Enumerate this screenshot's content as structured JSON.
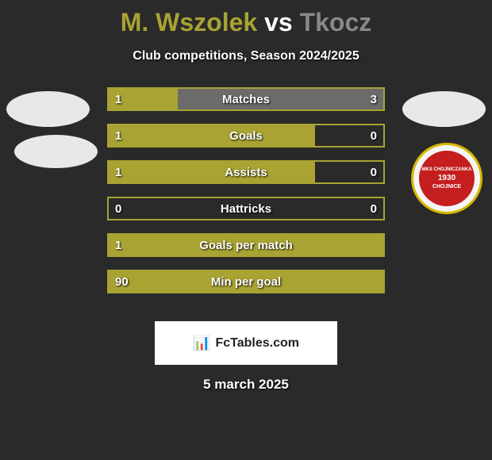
{
  "title": {
    "player1": "M. Wszolek",
    "vs": "vs",
    "player2": "Tkocz",
    "player1_color": "#a8a332",
    "player2_color": "#888888",
    "vs_color": "#ffffff"
  },
  "subtitle": "Club competitions, Season 2024/2025",
  "club_badge": {
    "text_top": "MKS CHOJNICZANKA",
    "year": "1930",
    "text_bottom": "CHOJNICE"
  },
  "colors": {
    "background": "#2a2a2a",
    "player1_bar": "#a8a332",
    "player2_bar": "#6b6b6b",
    "border": "#a8a332",
    "text": "#ffffff"
  },
  "stats": [
    {
      "label": "Matches",
      "left_value": "1",
      "right_value": "3",
      "left_pct": 25,
      "right_pct": 75,
      "left_color": "#a8a332",
      "right_color": "#6b6b6b"
    },
    {
      "label": "Goals",
      "left_value": "1",
      "right_value": "0",
      "left_pct": 75,
      "right_pct": 0,
      "left_color": "#a8a332",
      "right_color": "#6b6b6b"
    },
    {
      "label": "Assists",
      "left_value": "1",
      "right_value": "0",
      "left_pct": 75,
      "right_pct": 0,
      "left_color": "#a8a332",
      "right_color": "#6b6b6b"
    },
    {
      "label": "Hattricks",
      "left_value": "0",
      "right_value": "0",
      "left_pct": 0,
      "right_pct": 0,
      "left_color": "#a8a332",
      "right_color": "#6b6b6b"
    },
    {
      "label": "Goals per match",
      "left_value": "1",
      "right_value": "",
      "left_pct": 100,
      "right_pct": 0,
      "left_color": "#a8a332",
      "right_color": "#6b6b6b"
    },
    {
      "label": "Min per goal",
      "left_value": "90",
      "right_value": "",
      "left_pct": 100,
      "right_pct": 0,
      "left_color": "#a8a332",
      "right_color": "#6b6b6b"
    }
  ],
  "footer": {
    "site": "FcTables.com",
    "icon": "📊"
  },
  "date": "5 march 2025"
}
